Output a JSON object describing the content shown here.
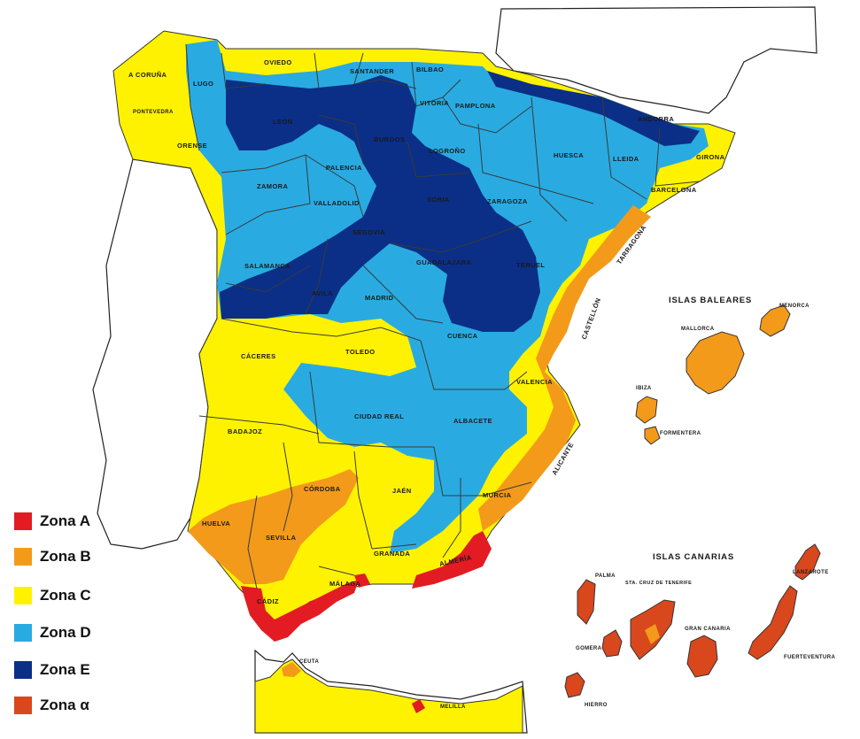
{
  "colors": {
    "zona_a": "#e31b23",
    "zona_b": "#f39a1b",
    "zona_c": "#fff200",
    "zona_d": "#29abe2",
    "zona_e": "#0b2f86",
    "zona_alpha": "#d9471d"
  },
  "legend": [
    {
      "label": "Zona A",
      "color": "#e31b23"
    },
    {
      "label": "Zona B",
      "color": "#f39a1b"
    },
    {
      "label": "Zona C",
      "color": "#fff200"
    },
    {
      "label": "Zona D",
      "color": "#29abe2"
    },
    {
      "label": "Zona E",
      "color": "#0b2f86"
    },
    {
      "label": "Zona α",
      "color": "#d9471d"
    }
  ],
  "regions": {
    "baleares": "ISLAS BALEARES",
    "canarias": "ISLAS CANARIAS"
  },
  "provinces": {
    "coruna": "A CORUÑA",
    "lugo": "LUGO",
    "oviedo": "OVIEDO",
    "santander": "SANTANDER",
    "bilbao": "BILBAO",
    "vitoria": "VITORIA",
    "pamplona": "PAMPLONA",
    "andorra": "ANDORRA",
    "pontevedra": "PONTEVEDRA",
    "orense": "ORENSE",
    "leon": "LEON",
    "burgos": "BURGOS",
    "logrono": "LOGROÑO",
    "huesca": "HUESCA",
    "lleida": "LLEIDA",
    "girona": "GIRONA",
    "palencia": "PALENCIA",
    "zamora": "ZAMORA",
    "valladolid": "VALLADOLID",
    "soria": "SORIA",
    "zaragoza": "ZARAGOZA",
    "barcelona": "BARCELONA",
    "tarragona": "TARRAGONA",
    "segovia": "SEGOVIA",
    "salamanca": "SALAMANCA",
    "guadalajara": "GUADALAJARA",
    "teruel": "TERUEL",
    "avila": "AVILA",
    "madrid": "MADRID",
    "castellon": "CASTELLÓN",
    "cuenca": "CUENCA",
    "caceres": "CÁCERES",
    "toledo": "TOLEDO",
    "valencia": "VALENCIA",
    "ciudad_real": "CIUDAD REAL",
    "albacete": "ALBACETE",
    "badajoz": "BADAJOZ",
    "alicante": "ALICANTE",
    "cordoba": "CÓRDOBA",
    "jaen": "JAÉN",
    "murcia": "MURCIA",
    "huelva": "HUELVA",
    "sevilla": "SEVILLA",
    "granada": "GRANADA",
    "almeria": "ALMERÍA",
    "malaga": "MÁLAGA",
    "cadiz": "CÁDIZ",
    "ceuta": "CEUTA",
    "melilla": "MELILLA",
    "mallorca": "MALLORCA",
    "menorca": "MENORCA",
    "ibiza": "IBIZA",
    "formentera": "FORMENTERA",
    "palma": "PALMA",
    "tenerife": "STA. CRUZ DE TENERIFE",
    "lanzarote": "LANZAROTE",
    "gomera": "GOMERA",
    "gran_canaria": "GRAN CANARIA",
    "fuerteventura": "FUERTEVENTURA",
    "hierro": "HIERRO"
  }
}
